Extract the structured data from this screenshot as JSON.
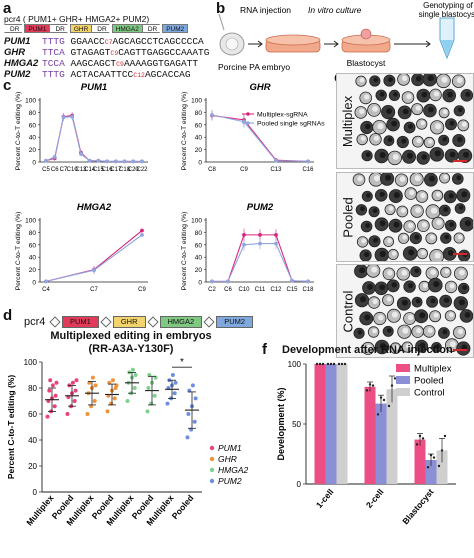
{
  "panel_letters": [
    "a",
    "b",
    "c",
    "d",
    "e",
    "f"
  ],
  "a": {
    "title": "pcr4 ( PUM1+ GHR+ HMGA2+ PUM2)",
    "construct": [
      {
        "text": "DR",
        "color": "#ffffff"
      },
      {
        "text": "PUM1",
        "color": "#e23b5a"
      },
      {
        "text": "DR",
        "color": "#ffffff"
      },
      {
        "text": "GHR",
        "color": "#f3d46a"
      },
      {
        "text": "DR",
        "color": "#ffffff"
      },
      {
        "text": "HMGA2",
        "color": "#7ec882"
      },
      {
        "text": "DR",
        "color": "#ffffff"
      },
      {
        "text": "PUM2",
        "color": "#7fa9de"
      }
    ],
    "rows": [
      {
        "gene": "PUM1",
        "pam": "TTTG",
        "pre": "GGAACC",
        "red": "C7",
        "post": "AGCAGCCTCAGCCCCA"
      },
      {
        "gene": "GHR",
        "pam": "TTCA",
        "pre": "GTAGAGT",
        "red": "C9",
        "post": "CAGTTGAGGCCAAATG"
      },
      {
        "gene": "HMGA2",
        "pam": "TCCA",
        "pre": "AAGCAGCT",
        "red": "C9",
        "post": "AAAAGGTGAGATT"
      },
      {
        "gene": "PUM2",
        "pam": "TTTG",
        "pre": "ACTACAATTCC",
        "red": "C12",
        "post": "AGCACCAG"
      }
    ]
  },
  "b": {
    "rna_injection": "RNA injection",
    "in_vitro": "In vitro culture",
    "genotyping": "Genotyping of single blastocyst",
    "embryo": "Porcine PA embryo",
    "blastocyst": "Blastocyst"
  },
  "c": {
    "ylabel": "Percent C-to-T editing (%)",
    "legend": [
      "Multiplex-sgRNA",
      "Pooled single sgRNAs"
    ]
  },
  "d": {
    "construct_label": "pcr4",
    "construct": [
      {
        "text": "PUM1",
        "color": "#e23b5a"
      },
      {
        "text": "GHR",
        "color": "#f3d46a"
      },
      {
        "text": "HMGA2",
        "color": "#7ec882"
      },
      {
        "text": "PUM2",
        "color": "#7fa9de"
      }
    ],
    "title_line1": "Multiplexed editing in embryos",
    "title_line2": "(RR-A3A-Y130F)",
    "ylabel": "Percent C-to-T editing (%)",
    "significance": "*",
    "legend": [
      {
        "name": "PUM1",
        "color": "#e8447a"
      },
      {
        "name": "GHR",
        "color": "#f0923c"
      },
      {
        "name": "HMGA2",
        "color": "#7fd18e"
      },
      {
        "name": "PUM2",
        "color": "#6e8fe0"
      }
    ]
  },
  "e": {
    "labels": [
      "Multiplex",
      "Pooled",
      "Control"
    ]
  },
  "f": {
    "title": "Development after RNA injection",
    "ylabel": "Development (%)",
    "legend": [
      {
        "name": "Multiplex",
        "color": "#ec4f86"
      },
      {
        "name": "Pooled",
        "color": "#8a8fd6"
      },
      {
        "name": "Control",
        "color": "#cfcfcf"
      }
    ]
  },
  "chart_data": [
    {
      "id": "c-PUM1",
      "type": "line",
      "title": "PUM1",
      "ylabel": "Percent C-to-T editing (%)",
      "categories": [
        "C5",
        "C6",
        "C7",
        "C10",
        "C13",
        "C14",
        "C15",
        "C16",
        "C17",
        "C18",
        "C20",
        "C22"
      ],
      "ylim": [
        0,
        100
      ],
      "yticks": [
        0,
        20,
        40,
        60,
        80,
        100
      ],
      "series": [
        {
          "name": "Multiplex-sgRNA",
          "values": [
            2,
            6,
            73,
            75,
            15,
            2,
            2,
            1,
            1,
            1,
            1,
            1
          ]
        },
        {
          "name": "Pooled single sgRNAs",
          "values": [
            2,
            8,
            72,
            73,
            13,
            2,
            2,
            1,
            1,
            1,
            1,
            1
          ]
        }
      ]
    },
    {
      "id": "c-GHR",
      "type": "line",
      "title": "GHR",
      "ylabel": "Percent C-to-T editing (%)",
      "categories": [
        "C8",
        "C9",
        "C13",
        "C16"
      ],
      "ylim": [
        0,
        100
      ],
      "yticks": [
        0,
        20,
        40,
        60,
        80,
        100
      ],
      "series": [
        {
          "name": "Multiplex-sgRNA",
          "values": [
            75,
            68,
            3,
            1
          ]
        },
        {
          "name": "Pooled single sgRNAs",
          "values": [
            76,
            65,
            2,
            1
          ]
        }
      ]
    },
    {
      "id": "c-HMGA2",
      "type": "line",
      "title": "HMGA2",
      "ylabel": "Percent C-to-T editing (%)",
      "categories": [
        "C4",
        "C7",
        "C9"
      ],
      "ylim": [
        0,
        100
      ],
      "yticks": [
        0,
        20,
        40,
        60,
        80,
        100
      ],
      "series": [
        {
          "name": "Multiplex-sgRNA",
          "values": [
            1,
            20,
            83
          ]
        },
        {
          "name": "Pooled single sgRNAs",
          "values": [
            1,
            19,
            76
          ]
        }
      ]
    },
    {
      "id": "c-PUM2",
      "type": "line",
      "title": "PUM2",
      "ylabel": "Percent C-to-T editing (%)",
      "categories": [
        "C2",
        "C6",
        "C10",
        "C11",
        "C12",
        "C15",
        "C18"
      ],
      "ylim": [
        0,
        100
      ],
      "yticks": [
        0,
        20,
        40,
        60,
        80,
        100
      ],
      "series": [
        {
          "name": "Multiplex-sgRNA",
          "values": [
            1,
            1,
            76,
            76,
            76,
            2,
            1
          ]
        },
        {
          "name": "Pooled single sgRNAs",
          "values": [
            1,
            1,
            60,
            62,
            62,
            2,
            1
          ]
        }
      ]
    },
    {
      "id": "d",
      "type": "scatter",
      "title": "Multiplexed editing in embryos (RR-A3A-Y130F)",
      "ylabel": "Percent C-to-T editing (%)",
      "ylim": [
        0,
        100
      ],
      "yticks": [
        0,
        20,
        40,
        60,
        80,
        100
      ],
      "categories": [
        "Multiplex",
        "Pooled",
        "Multiplex",
        "Pooled",
        "Multiplex",
        "Pooled",
        "Multiplex",
        "Pooled"
      ],
      "groups": [
        {
          "gene": "PUM1",
          "condition": "Multiplex",
          "mean": 71,
          "sd": 9,
          "points": [
            58,
            62,
            66,
            70,
            72,
            74,
            78,
            82,
            84,
            86
          ]
        },
        {
          "gene": "PUM1",
          "condition": "Pooled",
          "mean": 74,
          "sd": 8,
          "points": [
            60,
            66,
            70,
            73,
            76,
            78,
            82,
            84,
            86
          ]
        },
        {
          "gene": "GHR",
          "condition": "Multiplex",
          "mean": 76,
          "sd": 9,
          "points": [
            60,
            66,
            70,
            76,
            80,
            82,
            84,
            88
          ]
        },
        {
          "gene": "GHR",
          "condition": "Pooled",
          "mean": 75,
          "sd": 8,
          "points": [
            62,
            68,
            72,
            74,
            78,
            80,
            84,
            86,
            82
          ]
        },
        {
          "gene": "HMGA2",
          "condition": "Multiplex",
          "mean": 84,
          "sd": 8,
          "points": [
            70,
            76,
            80,
            84,
            88,
            90,
            92,
            94
          ]
        },
        {
          "gene": "HMGA2",
          "condition": "Pooled",
          "mean": 78,
          "sd": 11,
          "points": [
            62,
            68,
            74,
            80,
            84,
            88,
            90
          ]
        },
        {
          "gene": "PUM2",
          "condition": "Multiplex",
          "mean": 79,
          "sd": 7,
          "points": [
            68,
            72,
            76,
            80,
            82,
            84,
            86,
            90
          ]
        },
        {
          "gene": "PUM2",
          "condition": "Pooled",
          "mean": 63,
          "sd": 14,
          "points": [
            42,
            48,
            54,
            60,
            66,
            72,
            78,
            82
          ]
        }
      ]
    },
    {
      "id": "f",
      "type": "bar",
      "title": "Development after RNA injection",
      "ylabel": "Development (%)",
      "categories": [
        "1-cell",
        "2-cell",
        "Blastocyst"
      ],
      "ylim": [
        0,
        100
      ],
      "yticks": [
        0,
        50,
        100
      ],
      "series": [
        {
          "name": "Multiplex",
          "values": [
            100,
            81,
            37
          ]
        },
        {
          "name": "Pooled",
          "values": [
            100,
            67,
            20
          ]
        },
        {
          "name": "Control",
          "values": [
            100,
            79,
            28
          ]
        }
      ],
      "errors": [
        [
          0,
          4,
          5
        ],
        [
          0,
          7,
          5
        ],
        [
          0,
          11,
          10
        ]
      ],
      "points": [
        [
          [
            100,
            100,
            100
          ],
          [
            78,
            83,
            82
          ],
          [
            33,
            40,
            38
          ]
        ],
        [
          [
            100,
            100,
            100
          ],
          [
            58,
            72,
            70
          ],
          [
            14,
            24,
            22
          ]
        ],
        [
          [
            100,
            100,
            100
          ],
          [
            65,
            82,
            88
          ],
          [
            15,
            28,
            40
          ]
        ]
      ]
    }
  ]
}
